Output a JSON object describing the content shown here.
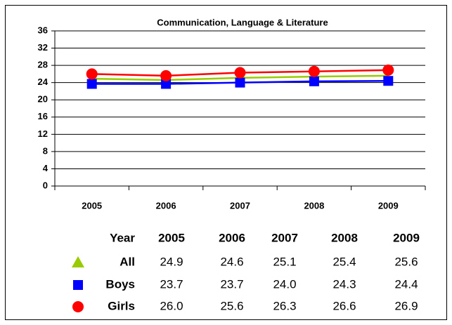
{
  "chart_data": {
    "type": "line",
    "title": "Communication, Language & Literature",
    "categories": [
      "2005",
      "2006",
      "2007",
      "2008",
      "2009"
    ],
    "ylim": [
      0,
      36
    ],
    "yticks": [
      0,
      4,
      8,
      12,
      16,
      20,
      24,
      28,
      32,
      36
    ],
    "grid": true,
    "table_header": "Year",
    "series": [
      {
        "name": "All",
        "color": "#99cc00",
        "marker": "triangle",
        "show_markers": false,
        "values": [
          24.9,
          24.6,
          25.1,
          25.4,
          25.6
        ],
        "value_labels": [
          "24.9",
          "24.6",
          "25.1",
          "25.4",
          "25.6"
        ]
      },
      {
        "name": "Boys",
        "color": "#0000ff",
        "marker": "square",
        "show_markers": true,
        "values": [
          23.7,
          23.7,
          24.0,
          24.3,
          24.4
        ],
        "value_labels": [
          "23.7",
          "23.7",
          "24.0",
          "24.3",
          "24.4"
        ]
      },
      {
        "name": "Girls",
        "color": "#ff0000",
        "marker": "circle",
        "show_markers": true,
        "values": [
          26.0,
          25.6,
          26.3,
          26.6,
          26.9
        ],
        "value_labels": [
          "26.0",
          "25.6",
          "26.3",
          "26.6",
          "26.9"
        ]
      }
    ]
  }
}
